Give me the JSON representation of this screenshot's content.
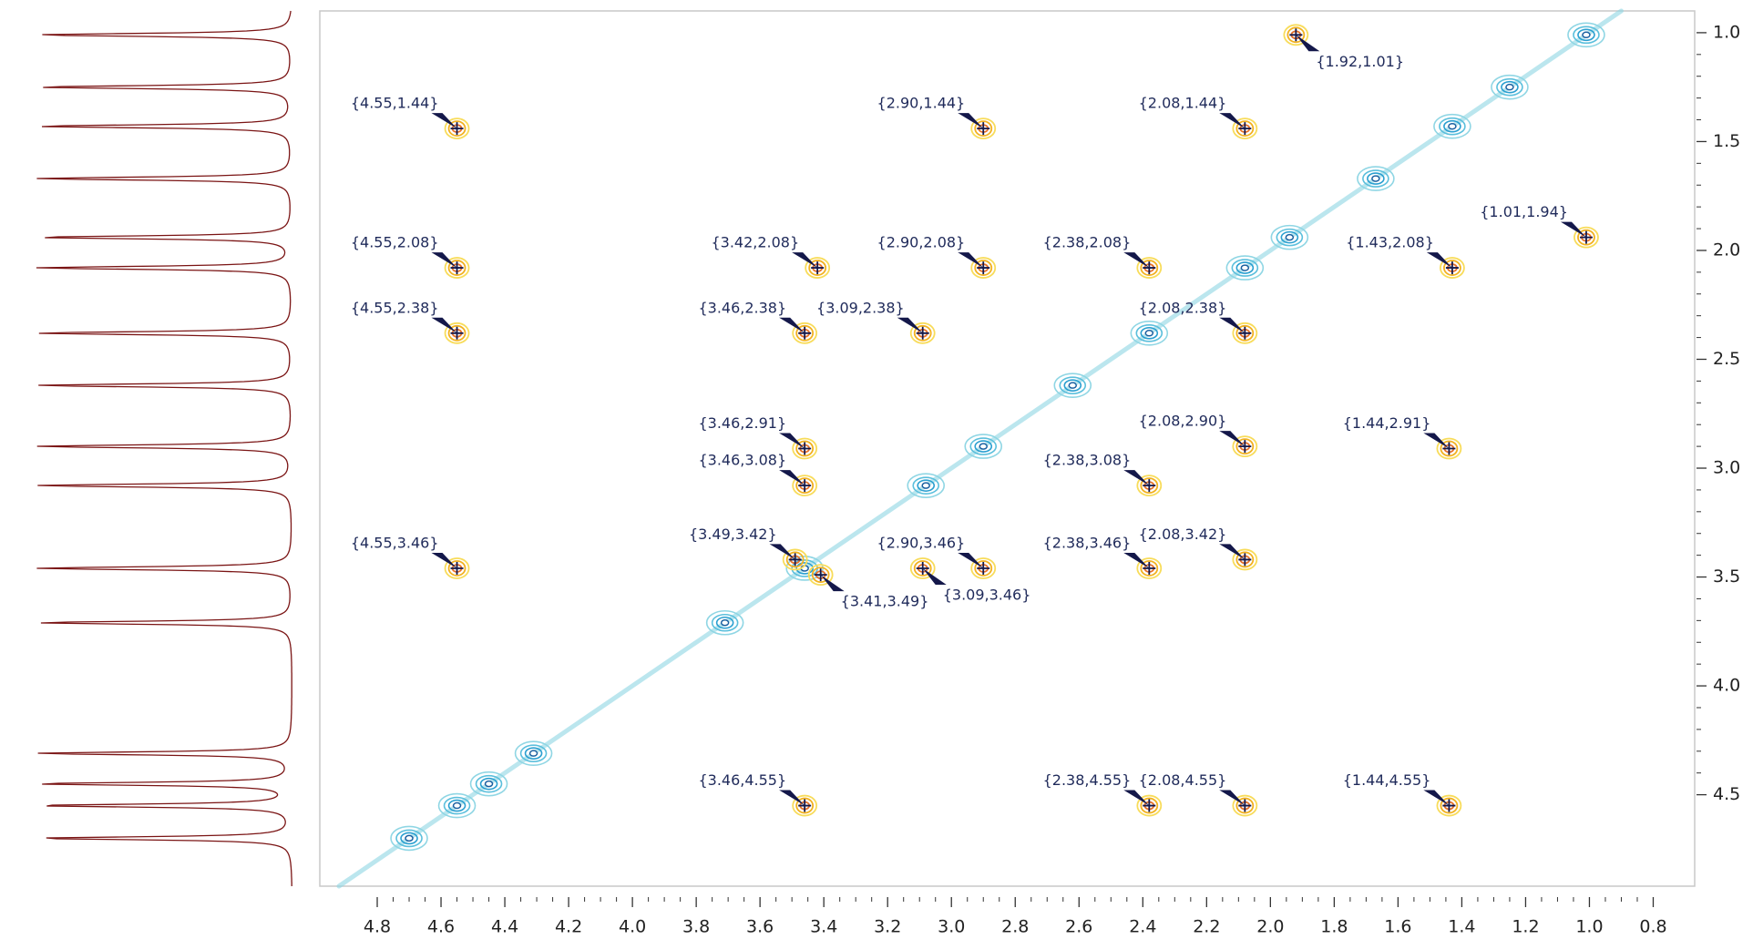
{
  "chart_data": {
    "type": "contour",
    "xlim": [
      4.98,
      0.67
    ],
    "ylim": [
      0.9,
      4.92
    ],
    "xticks": [
      4.8,
      4.6,
      4.4,
      4.2,
      {
        "value": 4,
        "label": "4.0"
      },
      3.8,
      3.6,
      3.4,
      3.2,
      {
        "value": 3,
        "label": "3.0"
      },
      2.8,
      2.6,
      2.4,
      2.2,
      {
        "value": 2,
        "label": "2.0"
      },
      1.8,
      1.6,
      1.4,
      1.2,
      {
        "value": 1,
        "label": "1.0"
      },
      0.8
    ],
    "yticks": [
      {
        "value": 1,
        "label": "1.0"
      },
      1.5,
      {
        "value": 2,
        "label": "2.0"
      },
      2.5,
      {
        "value": 3,
        "label": "3.0"
      },
      3.5,
      {
        "value": 4,
        "label": "4.0"
      },
      4.5
    ],
    "series": [
      {
        "color": "#f2b120",
        "x": [
          4.55,
          2.9,
          2.08,
          1.92,
          4.55,
          3.42,
          2.9,
          2.38,
          1.43,
          1.01,
          4.55,
          3.46,
          3.09,
          2.08,
          3.46,
          2.08,
          1.44,
          3.46,
          2.38,
          4.55,
          3.49,
          2.9,
          2.38,
          2.08,
          3.41,
          3.09,
          3.46,
          2.38,
          2.08,
          1.44
        ],
        "values": [
          1.44,
          1.44,
          1.44,
          1.01,
          2.08,
          2.08,
          2.08,
          2.08,
          2.08,
          1.94,
          2.38,
          2.38,
          2.38,
          2.38,
          2.91,
          2.9,
          2.91,
          3.08,
          3.08,
          3.46,
          3.42,
          3.46,
          3.46,
          3.42,
          3.49,
          3.46,
          4.55,
          4.55,
          4.55,
          4.55
        ],
        "value_labels": [
          "{4.55,1.44}",
          "{2.90,1.44}",
          "{2.08,1.44}",
          "{1.92,1.01}",
          "{4.55,2.08}",
          "{3.42,2.08}",
          "{2.90,2.08}",
          "{2.38,2.08}",
          "{1.43,2.08}",
          "{1.01,1.94}",
          "{4.55,2.38}",
          "{3.46,2.38}",
          "{3.09,2.38}",
          "{2.08,2.38}",
          "{3.46,2.91}",
          "{2.08,2.90}",
          "{1.44,2.91}",
          "{3.46,3.08}",
          "{2.38,3.08}",
          "{4.55,3.46}",
          "{3.49,3.42}",
          "{2.90,3.46}",
          "{2.38,3.46}",
          "{2.08,3.42}",
          "{3.41,3.49}",
          "{3.09,3.46}",
          "{3.46,4.55}",
          "{2.38,4.55}",
          "{2.08,4.55}",
          "{1.44,4.55}"
        ]
      },
      {
        "color": "#2a9fd0",
        "x": [
          1.01,
          1.25,
          1.43,
          1.67,
          1.94,
          2.08,
          2.38,
          2.62,
          2.9,
          3.08,
          3.46,
          3.71,
          4.31,
          4.45,
          4.55,
          4.7
        ],
        "values": [
          1.01,
          1.25,
          1.43,
          1.67,
          1.94,
          2.08,
          2.38,
          2.62,
          2.9,
          3.08,
          3.46,
          3.71,
          4.31,
          4.45,
          4.55,
          4.7
        ]
      }
    ]
  }
}
